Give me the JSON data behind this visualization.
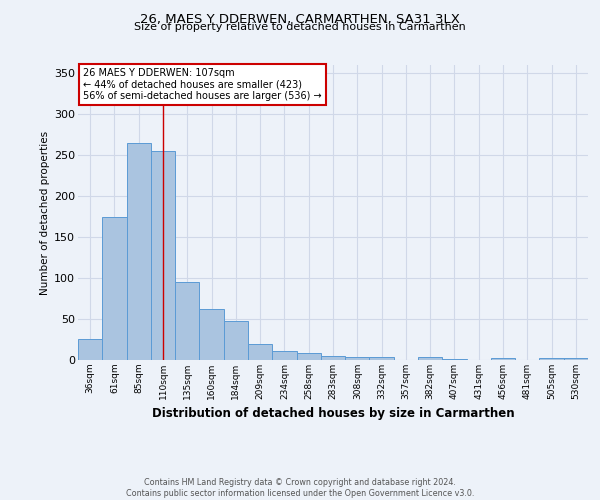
{
  "title_line1": "26, MAES Y DDERWEN, CARMARTHEN, SA31 3LX",
  "title_line2": "Size of property relative to detached houses in Carmarthen",
  "xlabel": "Distribution of detached houses by size in Carmarthen",
  "ylabel": "Number of detached properties",
  "categories": [
    "36sqm",
    "61sqm",
    "85sqm",
    "110sqm",
    "135sqm",
    "160sqm",
    "184sqm",
    "209sqm",
    "234sqm",
    "258sqm",
    "283sqm",
    "308sqm",
    "332sqm",
    "357sqm",
    "382sqm",
    "407sqm",
    "431sqm",
    "456sqm",
    "481sqm",
    "505sqm",
    "530sqm"
  ],
  "values": [
    26,
    175,
    265,
    255,
    95,
    62,
    47,
    20,
    11,
    9,
    5,
    4,
    4,
    0,
    4,
    1,
    0,
    2,
    0,
    3,
    3
  ],
  "bar_color": "#aac4e0",
  "bar_edge_color": "#5b9bd5",
  "grid_color": "#d0d8e8",
  "background_color": "#edf2f9",
  "annotation_box_color": "#ffffff",
  "annotation_border_color": "#cc0000",
  "vline_color": "#cc0000",
  "vline_x": 3,
  "annotation_text_line1": "26 MAES Y DDERWEN: 107sqm",
  "annotation_text_line2": "← 44% of detached houses are smaller (423)",
  "annotation_text_line3": "56% of semi-detached houses are larger (536) →",
  "footer_line1": "Contains HM Land Registry data © Crown copyright and database right 2024.",
  "footer_line2": "Contains public sector information licensed under the Open Government Licence v3.0.",
  "ylim": [
    0,
    360
  ],
  "yticks": [
    0,
    50,
    100,
    150,
    200,
    250,
    300,
    350
  ]
}
